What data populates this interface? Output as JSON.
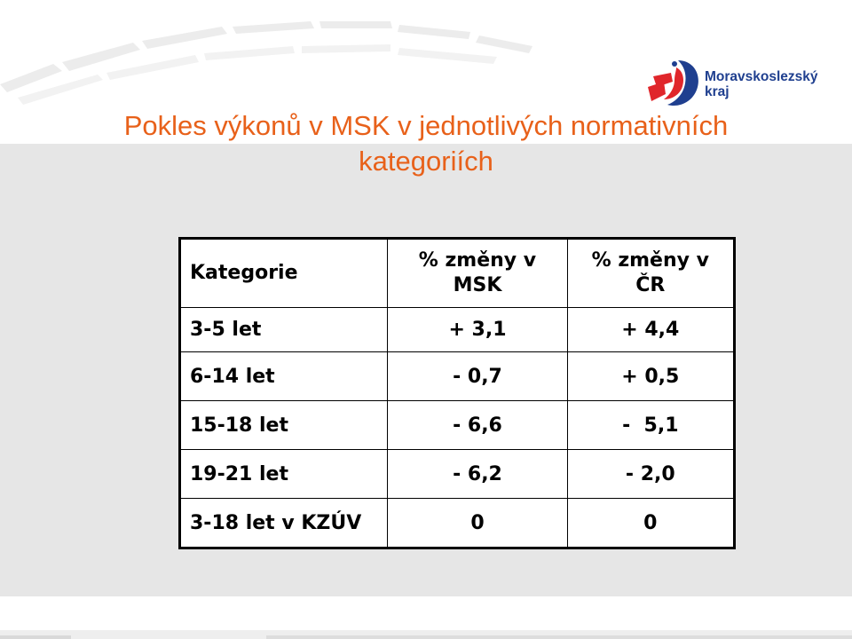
{
  "title": {
    "line1": "Pokles výkonů v MSK v jednotlivých normativních",
    "line2": "kategoriích"
  },
  "logo": {
    "name_line1": "Moravskoslezský",
    "name_line2": "kraj",
    "icon": "region-emblem-icon",
    "colors": {
      "red": "#e0262b",
      "blue": "#1f3f8f"
    }
  },
  "table": {
    "headers": {
      "category": "Kategorie",
      "msk_change": "% změny v MSK",
      "cr_change": "% změny v ČR"
    },
    "rows": [
      {
        "category": "3-5 let",
        "msk": "+ 3,1",
        "cr": "+ 4,4"
      },
      {
        "category": "6-14 let",
        "msk": "- 0,7",
        "cr": "+ 0,5"
      },
      {
        "category": "15-18 let",
        "msk": "- 6,6",
        "cr": "-  5,1"
      },
      {
        "category": "19-21 let",
        "msk": "- 6,2",
        "cr": "- 2,0"
      },
      {
        "category": "3-18 let v KZÚV",
        "msk": "0",
        "cr": "0"
      }
    ]
  },
  "colors": {
    "title": "#e8611a",
    "panel_background": "#e6e6e6",
    "table_border": "#000000"
  }
}
